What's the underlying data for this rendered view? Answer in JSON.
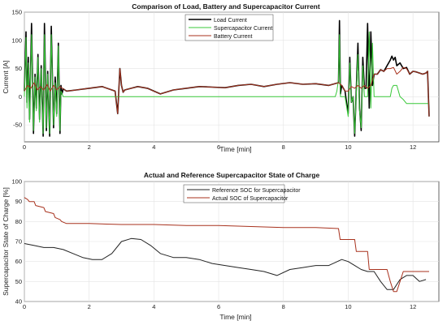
{
  "chart_data": [
    {
      "type": "line",
      "title": "Comparison of Load, Battery and Supercapacitor Current",
      "xlabel": "Time [min]",
      "ylabel": "Current [A]",
      "xlim": [
        0,
        12.8
      ],
      "ylim": [
        -80,
        150
      ],
      "xticks": [
        "0",
        "2",
        "4",
        "6",
        "8",
        "10",
        "12"
      ],
      "yticks": [
        "150",
        "100",
        "50",
        "0",
        "-50"
      ],
      "grid": true,
      "legend_position": "top-right",
      "series": [
        {
          "name": "Load Current",
          "color": "#000000",
          "x": [
            0,
            0.05,
            0.08,
            0.12,
            0.16,
            0.22,
            0.28,
            0.33,
            0.37,
            0.42,
            0.47,
            0.52,
            0.58,
            0.62,
            0.68,
            0.72,
            0.78,
            0.83,
            0.9,
            0.95,
            1.0,
            1.05,
            1.1,
            1.13,
            1.16,
            1.2,
            1.3,
            1.6,
            2.0,
            2.4,
            2.8,
            2.88,
            2.95,
            3.0,
            3.05,
            3.1,
            3.3,
            3.5,
            3.8,
            4.2,
            4.6,
            5.0,
            5.4,
            5.8,
            6.2,
            6.6,
            7.0,
            7.4,
            7.8,
            8.2,
            8.6,
            9.0,
            9.4,
            9.7,
            9.73,
            9.76,
            9.8,
            9.9,
            10.0,
            10.05,
            10.1,
            10.15,
            10.2,
            10.3,
            10.35,
            10.4,
            10.45,
            10.5,
            10.55,
            10.6,
            10.65,
            10.7,
            10.75,
            10.8,
            10.9,
            11.0,
            11.1,
            11.2,
            11.3,
            11.35,
            11.4,
            11.45,
            11.5,
            11.6,
            11.7,
            11.8,
            11.9,
            12.0,
            12.1,
            12.2,
            12.3,
            12.4,
            12.45,
            12.5
          ],
          "y": [
            10,
            115,
            -10,
            70,
            -40,
            130,
            -65,
            40,
            -20,
            75,
            -40,
            55,
            -70,
            130,
            -60,
            45,
            -70,
            125,
            -55,
            35,
            -30,
            95,
            -65,
            20,
            5,
            14,
            10,
            12,
            15,
            18,
            10,
            -30,
            50,
            20,
            8,
            12,
            15,
            18,
            15,
            5,
            12,
            15,
            18,
            17,
            16,
            20,
            22,
            18,
            22,
            25,
            22,
            23,
            20,
            25,
            135,
            5,
            20,
            10,
            -30,
            70,
            -10,
            0,
            -70,
            95,
            -20,
            -60,
            70,
            15,
            15,
            130,
            -20,
            115,
            20,
            40,
            40,
            48,
            45,
            55,
            65,
            72,
            65,
            70,
            55,
            60,
            50,
            52,
            40,
            45,
            44,
            42,
            40,
            42,
            45,
            -35
          ]
        },
        {
          "name": "Supercapacitor Current",
          "color": "#39c839",
          "x": [
            0,
            0.05,
            0.08,
            0.12,
            0.16,
            0.22,
            0.28,
            0.33,
            0.37,
            0.42,
            0.47,
            0.52,
            0.58,
            0.62,
            0.68,
            0.72,
            0.78,
            0.83,
            0.9,
            0.95,
            1.0,
            1.05,
            1.1,
            1.13,
            1.2,
            1.3,
            2.0,
            3.0,
            4.0,
            5.0,
            6.0,
            7.0,
            8.0,
            9.0,
            9.6,
            9.65,
            9.7,
            9.73,
            9.76,
            9.8,
            9.9,
            10.0,
            10.05,
            10.1,
            10.15,
            10.2,
            10.3,
            10.35,
            10.4,
            10.45,
            10.5,
            10.6,
            10.65,
            10.7,
            10.75,
            10.8,
            10.9,
            11.0,
            11.3,
            11.35,
            11.4,
            11.5,
            11.6,
            11.7,
            11.8,
            12.0,
            12.5
          ],
          "y": [
            0,
            105,
            -20,
            60,
            -45,
            110,
            -60,
            35,
            -25,
            70,
            -45,
            50,
            -65,
            110,
            -55,
            40,
            -65,
            110,
            -50,
            25,
            -35,
            90,
            -60,
            10,
            0,
            0,
            0,
            0,
            0,
            0,
            0,
            0,
            0,
            0,
            0,
            10,
            30,
            110,
            0,
            0,
            0,
            -35,
            60,
            -10,
            0,
            -65,
            75,
            -25,
            -55,
            55,
            0,
            0,
            115,
            -20,
            95,
            0,
            0,
            0,
            0,
            15,
            20,
            20,
            0,
            -5,
            -12,
            -12,
            -12
          ]
        },
        {
          "name": "Battery Current",
          "color": "#a8321e",
          "x": [
            0,
            0.1,
            0.2,
            0.3,
            0.4,
            0.5,
            0.6,
            0.7,
            0.8,
            0.9,
            1.0,
            1.1,
            1.2,
            1.3,
            1.6,
            2.0,
            2.4,
            2.8,
            2.88,
            2.95,
            3.0,
            3.05,
            3.1,
            3.3,
            3.5,
            3.8,
            4.2,
            4.6,
            5.0,
            5.4,
            5.8,
            6.2,
            6.6,
            7.0,
            7.4,
            7.8,
            8.2,
            8.6,
            9.0,
            9.4,
            9.7,
            9.8,
            9.9,
            10.0,
            10.1,
            10.2,
            10.3,
            10.4,
            10.5,
            10.6,
            10.7,
            10.8,
            10.9,
            11.0,
            11.1,
            11.2,
            11.3,
            11.4,
            11.5,
            11.6,
            11.7,
            11.8,
            11.9,
            12.0,
            12.1,
            12.2,
            12.3,
            12.4,
            12.45,
            12.5
          ],
          "y": [
            10,
            20,
            15,
            25,
            12,
            18,
            12,
            22,
            10,
            20,
            12,
            18,
            14,
            10,
            12,
            15,
            18,
            10,
            -30,
            50,
            20,
            8,
            12,
            15,
            18,
            15,
            5,
            12,
            15,
            18,
            17,
            16,
            20,
            22,
            18,
            22,
            25,
            22,
            23,
            20,
            25,
            20,
            10,
            10,
            18,
            15,
            20,
            15,
            20,
            15,
            20,
            40,
            40,
            48,
            45,
            50,
            50,
            52,
            40,
            45,
            52,
            50,
            40,
            45,
            44,
            42,
            40,
            42,
            45,
            -35
          ]
        }
      ]
    },
    {
      "type": "line",
      "title": "Actual and Reference Supercapacitor State of Charge",
      "xlabel": "Time [min]",
      "ylabel": "Supercapacitor State of Charge [%]",
      "xlim": [
        0,
        12.8
      ],
      "ylim": [
        40,
        100
      ],
      "xticks": [
        "0",
        "2",
        "4",
        "6",
        "8",
        "10",
        "12"
      ],
      "yticks": [
        "100",
        "90",
        "80",
        "70",
        "60",
        "50",
        "40"
      ],
      "grid": true,
      "legend_position": "top-center",
      "series": [
        {
          "name": "Reference SOC for Supercapacitor",
          "color": "#222222",
          "x": [
            0,
            0.3,
            0.6,
            0.9,
            1.2,
            1.5,
            1.8,
            2.1,
            2.4,
            2.7,
            3.0,
            3.3,
            3.6,
            3.9,
            4.2,
            4.6,
            5.0,
            5.4,
            5.8,
            6.2,
            6.6,
            7.0,
            7.4,
            7.8,
            8.2,
            8.6,
            9.0,
            9.4,
            9.8,
            10.0,
            10.2,
            10.4,
            10.6,
            10.8,
            11.0,
            11.2,
            11.4,
            11.6,
            11.8,
            12.0,
            12.2,
            12.4
          ],
          "y": [
            69,
            68,
            67,
            67,
            66,
            64,
            62,
            61,
            61,
            64,
            70,
            71.5,
            71,
            68,
            64,
            62,
            62,
            61,
            59,
            58,
            57,
            56,
            55,
            53,
            56,
            57,
            58,
            58,
            61,
            60,
            58,
            56,
            55,
            55,
            50,
            46,
            46,
            51,
            53,
            53,
            50,
            51
          ]
        },
        {
          "name": "Actual SOC of Supercapacitor",
          "color": "#a8321e",
          "x": [
            0,
            0.1,
            0.15,
            0.3,
            0.35,
            0.6,
            0.65,
            0.9,
            0.95,
            1.1,
            1.15,
            1.3,
            2.0,
            3.0,
            4.0,
            5.0,
            6.0,
            7.0,
            8.0,
            9.0,
            9.7,
            9.75,
            10.2,
            10.25,
            10.6,
            10.65,
            11.2,
            11.3,
            11.4,
            11.5,
            11.6,
            11.7,
            11.8,
            12.0,
            12.2,
            12.5
          ],
          "y": [
            92,
            91,
            90,
            90,
            88,
            87,
            85,
            84,
            82,
            81,
            80,
            79,
            79,
            78.5,
            78.5,
            78,
            78,
            77.5,
            77,
            77,
            76.5,
            71,
            71,
            65,
            65,
            56,
            56,
            50,
            45,
            45,
            50,
            55,
            55,
            55,
            55,
            55
          ]
        }
      ]
    }
  ]
}
